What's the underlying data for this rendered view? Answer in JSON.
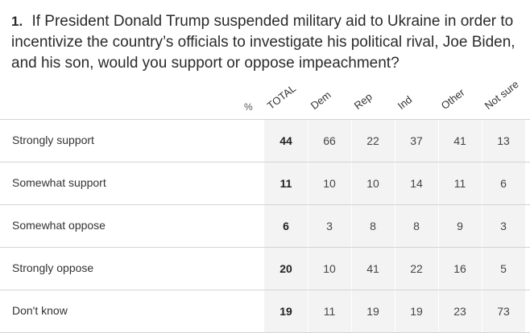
{
  "question": {
    "number": "1.",
    "text": "If President Donald Trump suspended military aid to Ukraine in order to incentivize the country’s officials to investigate his political rival, Joe Biden, and his son, would you support or oppose impeachment?"
  },
  "percent_symbol": "%",
  "chart_data": {
    "type": "table",
    "columns": [
      "TOTAL",
      "Dem",
      "Rep",
      "Ind",
      "Other",
      "Not sure"
    ],
    "rows": [
      {
        "label": "Strongly support",
        "values": [
          44,
          66,
          22,
          37,
          41,
          13
        ]
      },
      {
        "label": "Somewhat support",
        "values": [
          11,
          10,
          10,
          14,
          11,
          6
        ]
      },
      {
        "label": "Somewhat oppose",
        "values": [
          6,
          3,
          8,
          8,
          9,
          3
        ]
      },
      {
        "label": "Strongly oppose",
        "values": [
          20,
          10,
          41,
          22,
          16,
          5
        ]
      },
      {
        "label": "Don't know",
        "values": [
          19,
          11,
          19,
          19,
          23,
          73
        ]
      }
    ]
  }
}
